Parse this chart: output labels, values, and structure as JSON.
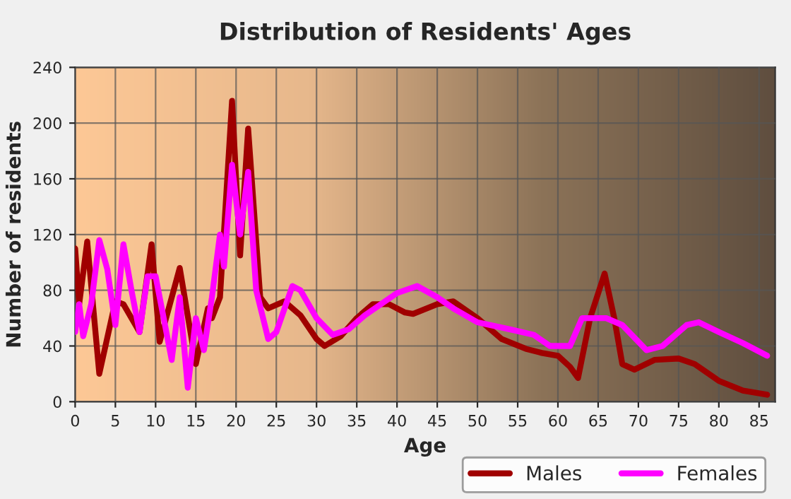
{
  "chart_data": {
    "type": "line",
    "title": "Distribution of Residents' Ages",
    "xlabel": "Age",
    "ylabel": "Number of residents",
    "xlim": [
      0,
      87
    ],
    "xticks": [
      0,
      5,
      10,
      15,
      20,
      25,
      30,
      35,
      40,
      45,
      50,
      55,
      60,
      65,
      70,
      75,
      80,
      85
    ],
    "ylim": [
      0,
      240
    ],
    "yticks": [
      0,
      40,
      80,
      120,
      160,
      200,
      240
    ],
    "grid": true,
    "legend": "bottom right",
    "series": [
      {
        "name": "Males",
        "color": "#a00000",
        "x": [
          0,
          0.5,
          1.5,
          3,
          5,
          6,
          8,
          9.5,
          10.5,
          13,
          15,
          16.5,
          17,
          18,
          19.5,
          20.5,
          21.5,
          23,
          24,
          26,
          28,
          30,
          31,
          33,
          35,
          37,
          39,
          41,
          42,
          45,
          47,
          50,
          53,
          56,
          58,
          60,
          61.5,
          62.5,
          64,
          65.8,
          67,
          68,
          69.5,
          72,
          75,
          77,
          80,
          83,
          86
        ],
        "values": [
          110,
          70,
          115,
          20,
          72,
          70,
          50,
          113,
          43,
          96,
          27,
          67,
          60,
          75,
          216,
          105,
          196,
          75,
          67,
          72,
          62,
          45,
          40,
          47,
          60,
          70,
          70,
          64,
          63,
          70,
          72,
          60,
          45,
          38,
          35,
          33,
          25,
          17,
          60,
          92,
          60,
          27,
          23,
          30,
          31,
          27,
          15,
          8,
          5
        ]
      },
      {
        "name": "Females",
        "color": "#ff00ff",
        "x": [
          0,
          0.5,
          1,
          2,
          3,
          4,
          5,
          6,
          7,
          8,
          9,
          10,
          11,
          12,
          13,
          14,
          15,
          16,
          17,
          18,
          18.5,
          19.5,
          20.5,
          21.5,
          22.5,
          24,
          25,
          27,
          28,
          30,
          32,
          34,
          36,
          40,
          42.5,
          45,
          47,
          50,
          54,
          57,
          59,
          61.5,
          63,
          66,
          68,
          71,
          73,
          76,
          77.5,
          80,
          83,
          86
        ],
        "values": [
          50,
          70,
          47,
          70,
          116,
          95,
          55,
          113,
          80,
          50,
          90,
          90,
          60,
          30,
          75,
          10,
          60,
          37,
          75,
          120,
          97,
          170,
          120,
          165,
          80,
          45,
          50,
          83,
          80,
          60,
          48,
          52,
          62,
          78,
          83,
          75,
          67,
          57,
          52,
          48,
          40,
          40,
          60,
          60,
          55,
          37,
          40,
          55,
          57,
          50,
          42,
          33
        ]
      }
    ]
  }
}
